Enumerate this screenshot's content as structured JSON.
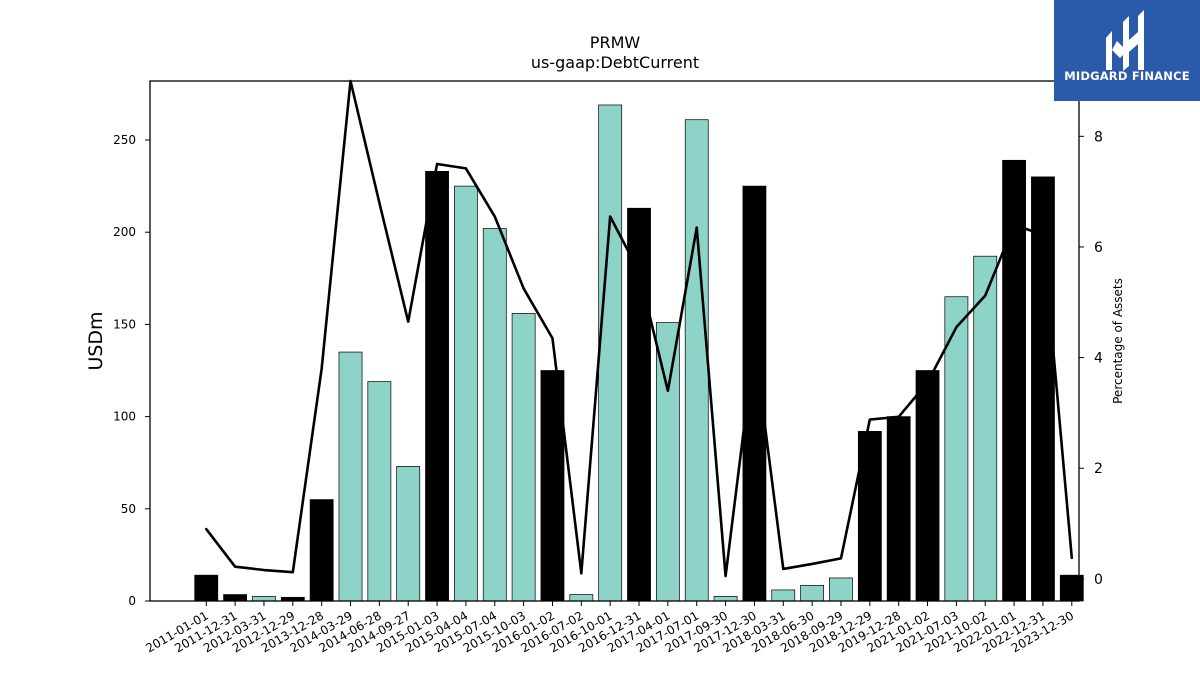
{
  "logo": {
    "text": "MIDGARD FINANCE",
    "icon": "midgard-m-icon",
    "background": "#2b5aab"
  },
  "chart_data": {
    "type": "bar",
    "title": "PRMW",
    "subtitle": "us-gaap:DebtCurrent",
    "ylabel": "USDm",
    "y2label": "Percentage of Assets",
    "ylim": [
      0,
      282
    ],
    "y2lim": [
      -0.4,
      9.0
    ],
    "yticks": [
      0,
      50,
      100,
      150,
      200,
      250
    ],
    "y2ticks": [
      0,
      2,
      4,
      6,
      8
    ],
    "grid": false,
    "legend": "none",
    "colors": {
      "annual": "#000000",
      "quarterly": "#8dd3c7",
      "line": "#000000"
    },
    "categories": [
      "2011-01-01",
      "2011-12-31",
      "2012-03-31",
      "2012-12-29",
      "2013-12-28",
      "2014-03-29",
      "2014-06-28",
      "2014-09-27",
      "2015-01-03",
      "2015-04-04",
      "2015-07-04",
      "2015-10-03",
      "2016-01-02",
      "2016-07-02",
      "2016-10-01",
      "2016-12-31",
      "2017-04-01",
      "2017-07-01",
      "2017-09-30",
      "2017-12-30",
      "2018-03-31",
      "2018-06-30",
      "2018-09-29",
      "2018-12-29",
      "2019-12-28",
      "2021-01-02",
      "2021-07-03",
      "2021-10-02",
      "2022-01-01",
      "2022-12-31",
      "2023-12-30"
    ],
    "series": [
      {
        "type": "bar",
        "values": [
          14,
          3.5,
          2.5,
          2,
          55,
          135,
          119,
          73,
          233,
          225,
          202,
          156,
          125,
          3.5,
          269,
          213,
          151,
          261,
          2.5,
          225,
          6,
          8.5,
          12.5,
          92,
          100,
          125,
          165,
          187,
          239,
          230,
          14
        ],
        "fill": [
          "annual",
          "annual",
          "quarterly",
          "annual",
          "annual",
          "quarterly",
          "quarterly",
          "quarterly",
          "annual",
          "quarterly",
          "quarterly",
          "quarterly",
          "annual",
          "quarterly",
          "quarterly",
          "annual",
          "quarterly",
          "quarterly",
          "quarterly",
          "annual",
          "quarterly",
          "quarterly",
          "quarterly",
          "annual",
          "annual",
          "annual",
          "quarterly",
          "quarterly",
          "annual",
          "annual",
          "annual"
        ]
      },
      {
        "type": "line",
        "axis": "y2",
        "values": [
          0.9,
          0.22,
          0.16,
          0.12,
          3.8,
          9.0,
          6.8,
          4.65,
          7.5,
          7.42,
          6.55,
          5.25,
          4.35,
          0.1,
          6.55,
          5.55,
          3.4,
          6.35,
          0.05,
          4.25,
          0.18,
          0.27,
          0.37,
          2.88,
          2.93,
          3.55,
          4.55,
          5.12,
          6.4,
          6.22,
          0.38
        ]
      }
    ]
  }
}
